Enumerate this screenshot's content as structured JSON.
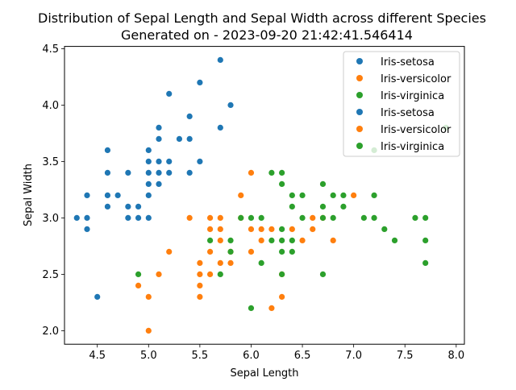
{
  "chart_data": {
    "type": "scatter",
    "title": "Distribution of Sepal Length and Sepal Width across different Species",
    "subtitle": "Generated on - 2023-09-20 21:42:41.546414",
    "xlabel": "Sepal Length",
    "ylabel": "Sepal Width",
    "xlim": [
      4.18,
      8.08
    ],
    "ylim": [
      1.88,
      4.52
    ],
    "xticks": [
      "4.5",
      "5.0",
      "5.5",
      "6.0",
      "6.5",
      "7.0",
      "7.5",
      "8.0"
    ],
    "yticks": [
      "2.0",
      "2.5",
      "3.0",
      "3.5",
      "4.0",
      "4.5"
    ],
    "grid": false,
    "legend_position": "top-right",
    "legend": [
      {
        "label": "Iris-setosa",
        "color": "#1f77b4"
      },
      {
        "label": "Iris-versicolor",
        "color": "#ff7f0e"
      },
      {
        "label": "Iris-virginica",
        "color": "#2ca02c"
      },
      {
        "label": "Iris-setosa",
        "color": "#1f77b4"
      },
      {
        "label": "Iris-versicolor",
        "color": "#ff7f0e"
      },
      {
        "label": "Iris-virginica",
        "color": "#2ca02c"
      }
    ],
    "series": [
      {
        "name": "Iris-setosa",
        "color": "#1f77b4",
        "points": [
          [
            4.3,
            3.0
          ],
          [
            4.4,
            3.2
          ],
          [
            4.4,
            3.0
          ],
          [
            4.4,
            2.9
          ],
          [
            4.5,
            2.3
          ],
          [
            4.6,
            3.6
          ],
          [
            4.6,
            3.4
          ],
          [
            4.6,
            3.2
          ],
          [
            4.6,
            3.1
          ],
          [
            4.7,
            3.2
          ],
          [
            4.8,
            3.4
          ],
          [
            4.8,
            3.1
          ],
          [
            4.8,
            3.0
          ],
          [
            4.9,
            3.1
          ],
          [
            4.9,
            3.0
          ],
          [
            5.0,
            3.6
          ],
          [
            5.0,
            3.5
          ],
          [
            5.0,
            3.4
          ],
          [
            5.0,
            3.3
          ],
          [
            5.0,
            3.2
          ],
          [
            5.0,
            3.0
          ],
          [
            5.1,
            3.8
          ],
          [
            5.1,
            3.7
          ],
          [
            5.1,
            3.5
          ],
          [
            5.1,
            3.4
          ],
          [
            5.1,
            3.3
          ],
          [
            5.2,
            4.1
          ],
          [
            5.2,
            3.5
          ],
          [
            5.2,
            3.4
          ],
          [
            5.3,
            3.7
          ],
          [
            5.4,
            3.9
          ],
          [
            5.4,
            3.7
          ],
          [
            5.4,
            3.4
          ],
          [
            5.5,
            4.2
          ],
          [
            5.5,
            3.5
          ],
          [
            5.7,
            4.4
          ],
          [
            5.7,
            3.8
          ],
          [
            5.8,
            4.0
          ]
        ]
      },
      {
        "name": "Iris-versicolor",
        "color": "#ff7f0e",
        "points": [
          [
            4.9,
            2.4
          ],
          [
            5.0,
            2.3
          ],
          [
            5.0,
            2.0
          ],
          [
            5.1,
            2.5
          ],
          [
            5.2,
            2.7
          ],
          [
            5.4,
            3.0
          ],
          [
            5.5,
            2.6
          ],
          [
            5.5,
            2.5
          ],
          [
            5.5,
            2.4
          ],
          [
            5.5,
            2.3
          ],
          [
            5.6,
            3.0
          ],
          [
            5.6,
            2.9
          ],
          [
            5.6,
            2.7
          ],
          [
            5.6,
            2.5
          ],
          [
            5.7,
            3.0
          ],
          [
            5.7,
            2.9
          ],
          [
            5.7,
            2.8
          ],
          [
            5.7,
            2.6
          ],
          [
            5.8,
            2.7
          ],
          [
            5.8,
            2.6
          ],
          [
            5.9,
            3.2
          ],
          [
            5.9,
            3.0
          ],
          [
            6.0,
            3.4
          ],
          [
            6.0,
            2.9
          ],
          [
            6.0,
            2.7
          ],
          [
            6.1,
            2.9
          ],
          [
            6.1,
            2.8
          ],
          [
            6.2,
            2.9
          ],
          [
            6.2,
            2.2
          ],
          [
            6.3,
            2.5
          ],
          [
            6.3,
            2.3
          ],
          [
            6.4,
            2.9
          ],
          [
            6.5,
            2.8
          ],
          [
            6.6,
            3.0
          ],
          [
            6.6,
            2.9
          ],
          [
            6.7,
            3.0
          ],
          [
            6.8,
            2.8
          ],
          [
            7.0,
            3.2
          ]
        ]
      },
      {
        "name": "Iris-virginica",
        "color": "#2ca02c",
        "points": [
          [
            4.9,
            2.5
          ],
          [
            5.6,
            2.8
          ],
          [
            5.7,
            2.5
          ],
          [
            5.8,
            2.8
          ],
          [
            5.8,
            2.7
          ],
          [
            5.9,
            3.0
          ],
          [
            6.0,
            3.0
          ],
          [
            6.0,
            2.2
          ],
          [
            6.1,
            3.0
          ],
          [
            6.1,
            2.6
          ],
          [
            6.2,
            3.4
          ],
          [
            6.2,
            2.8
          ],
          [
            6.3,
            3.4
          ],
          [
            6.3,
            3.3
          ],
          [
            6.3,
            2.9
          ],
          [
            6.3,
            2.8
          ],
          [
            6.3,
            2.7
          ],
          [
            6.3,
            2.5
          ],
          [
            6.4,
            3.2
          ],
          [
            6.4,
            3.1
          ],
          [
            6.4,
            2.8
          ],
          [
            6.4,
            2.7
          ],
          [
            6.5,
            3.2
          ],
          [
            6.5,
            3.0
          ],
          [
            6.7,
            3.3
          ],
          [
            6.7,
            3.1
          ],
          [
            6.7,
            3.0
          ],
          [
            6.7,
            2.5
          ],
          [
            6.8,
            3.2
          ],
          [
            6.8,
            3.0
          ],
          [
            6.9,
            3.2
          ],
          [
            6.9,
            3.1
          ],
          [
            7.1,
            3.0
          ],
          [
            7.2,
            3.6
          ],
          [
            7.2,
            3.2
          ],
          [
            7.2,
            3.0
          ],
          [
            7.3,
            2.9
          ],
          [
            7.4,
            2.8
          ],
          [
            7.6,
            3.0
          ],
          [
            7.7,
            3.0
          ],
          [
            7.7,
            2.8
          ],
          [
            7.7,
            2.6
          ],
          [
            7.9,
            3.8
          ]
        ]
      }
    ]
  }
}
